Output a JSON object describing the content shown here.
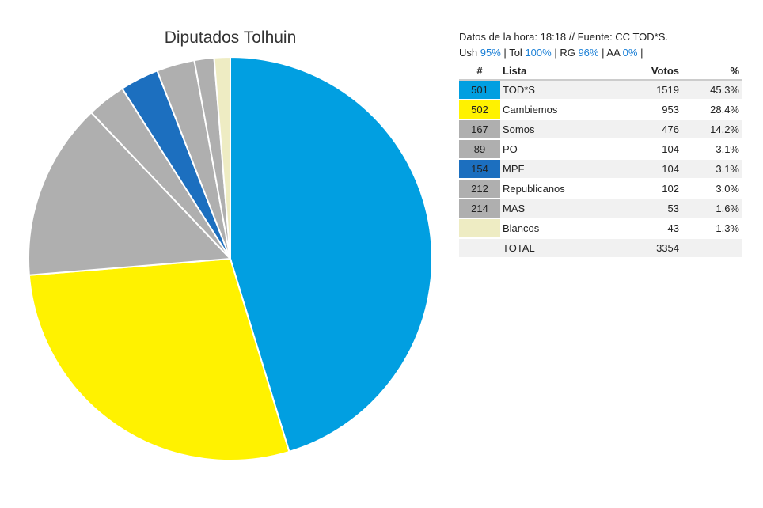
{
  "chart_data": {
    "type": "pie",
    "title": "Diputados Tolhuin",
    "slices": [
      {
        "lista": "501",
        "name": "TOD*S",
        "votos": 1519,
        "pct": "45.3%",
        "value": 45.3,
        "color": "#019fe1"
      },
      {
        "lista": "502",
        "name": "Cambiemos",
        "votos": 953,
        "pct": "28.4%",
        "value": 28.4,
        "color": "#fff200"
      },
      {
        "lista": "167",
        "name": "Somos",
        "votos": 476,
        "pct": "14.2%",
        "value": 14.2,
        "color": "#afafaf"
      },
      {
        "lista": "89",
        "name": "PO",
        "votos": 104,
        "pct": "3.1%",
        "value": 3.1,
        "color": "#afafaf"
      },
      {
        "lista": "154",
        "name": "MPF",
        "votos": 104,
        "pct": "3.1%",
        "value": 3.1,
        "color": "#1c6fbf"
      },
      {
        "lista": "212",
        "name": "Republicanos",
        "votos": 102,
        "pct": "3.0%",
        "value": 3.0,
        "color": "#afafaf"
      },
      {
        "lista": "214",
        "name": "MAS",
        "votos": 53,
        "pct": "1.6%",
        "value": 1.6,
        "color": "#afafaf"
      },
      {
        "lista": "",
        "name": "Blancos",
        "votos": 43,
        "pct": "1.3%",
        "value": 1.3,
        "color": "#eeecc3"
      }
    ]
  },
  "info": {
    "line1": "Datos de la hora: 18:18 // Fuente: CC TOD*S.",
    "items": [
      {
        "label": "Ush",
        "value": "95%"
      },
      {
        "label": "Tol",
        "value": "100%"
      },
      {
        "label": "RG",
        "value": "96%"
      },
      {
        "label": "AA",
        "value": "0%"
      }
    ]
  },
  "table": {
    "headers": {
      "num": "#",
      "lista": "Lista",
      "votos": "Votos",
      "pct": "%"
    },
    "total_label": "TOTAL",
    "total_votos": "3354"
  }
}
